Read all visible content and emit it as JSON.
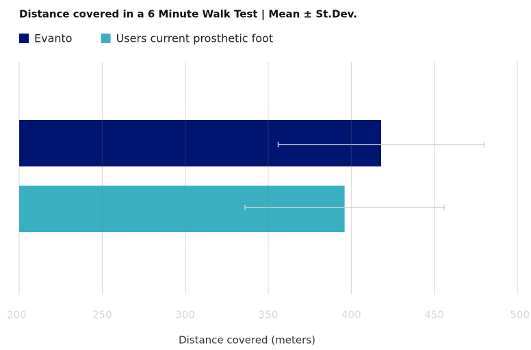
{
  "chart_data": {
    "type": "hbar_error",
    "title": "Distance covered in a 6 Minute Walk Test | Mean ± St.Dev.",
    "x_label": "Distance covered (meters)",
    "series": [
      {
        "name": "Evanto",
        "color": "#001571",
        "values": [
          418
        ],
        "errors": [
          62
        ]
      },
      {
        "name": "Users current prosthetic foot",
        "color": "#3aafc2",
        "values": [
          396
        ],
        "errors": [
          60
        ]
      }
    ],
    "xlim": [
      200,
      500
    ],
    "xticks": [
      200,
      250,
      300,
      350,
      400,
      450,
      500
    ],
    "grid": true
  }
}
